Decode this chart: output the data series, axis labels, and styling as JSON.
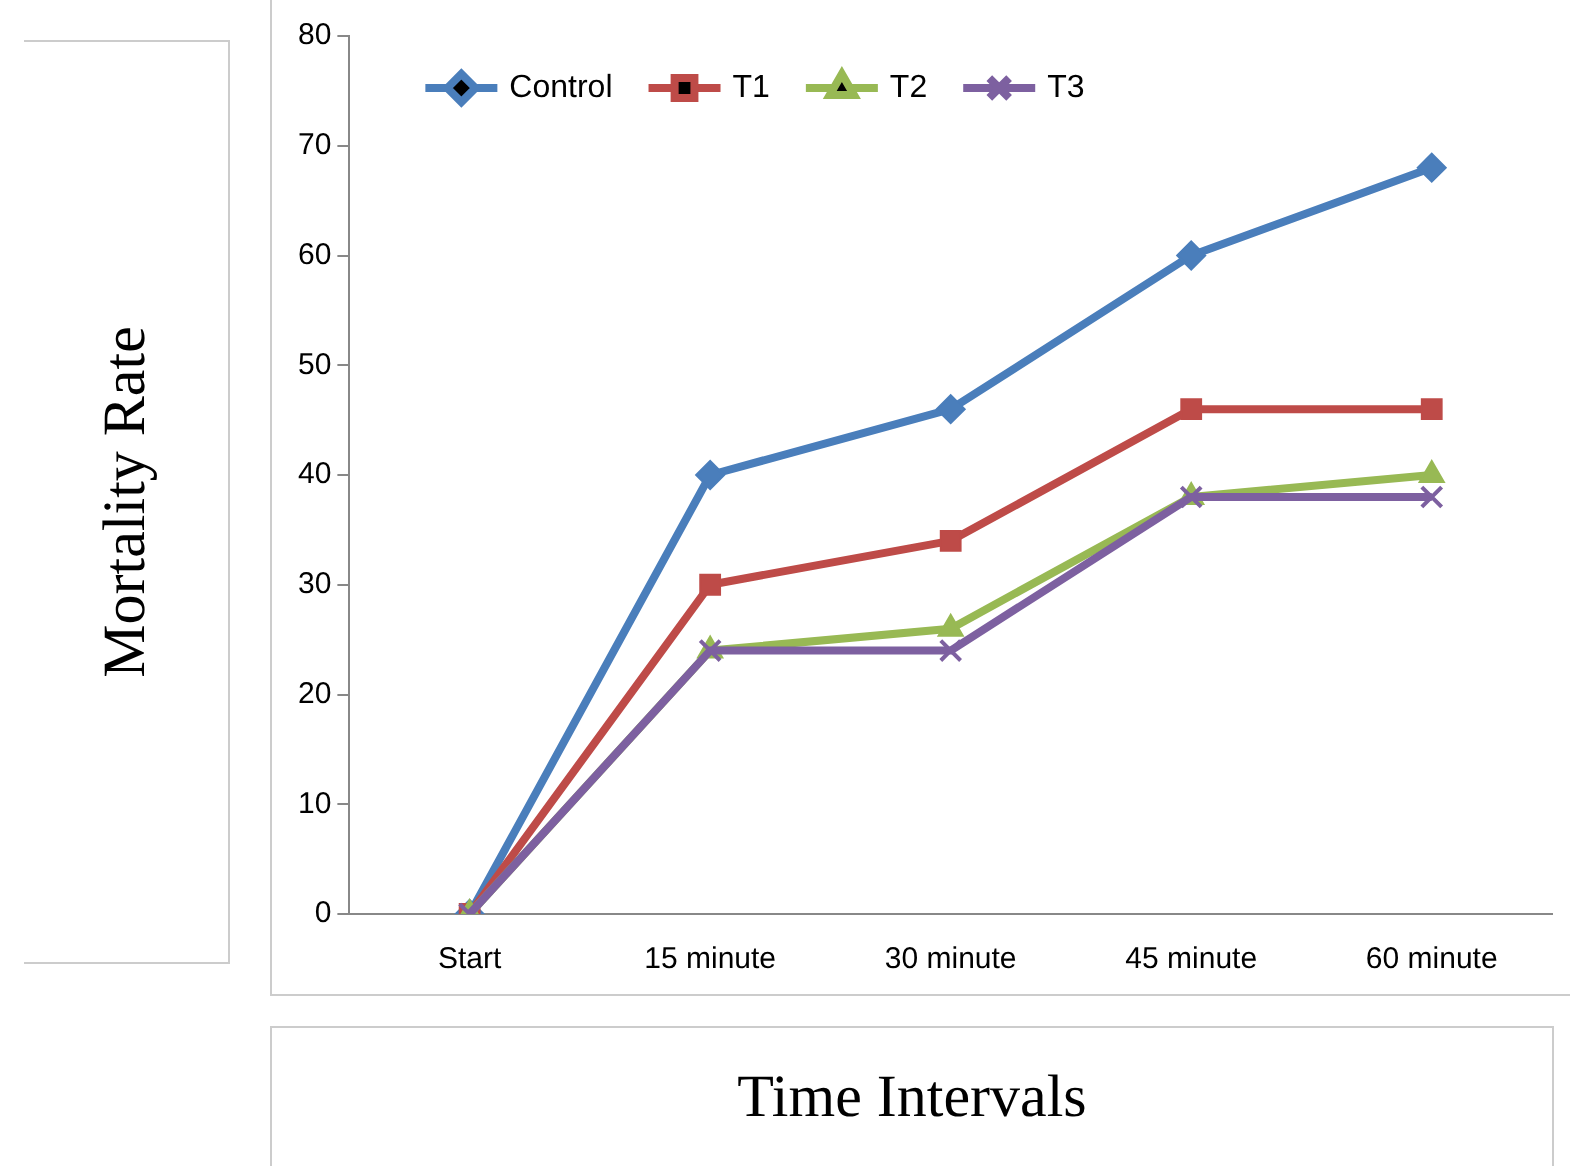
{
  "chart_data": {
    "type": "line",
    "xlabel": "Time Intervals",
    "ylabel": "Mortality Rate",
    "categories": [
      "Start",
      "15 minute",
      "30 minute",
      "45 minute",
      "60 minute"
    ],
    "series": [
      {
        "name": "Control",
        "color": "#4a7ebb",
        "marker": "diamond",
        "values": [
          0,
          40,
          46,
          60,
          68
        ]
      },
      {
        "name": "T1",
        "color": "#be4b48",
        "marker": "square",
        "values": [
          0,
          30,
          34,
          46,
          46
        ]
      },
      {
        "name": "T2",
        "color": "#98b954",
        "marker": "triangle",
        "values": [
          0,
          24,
          26,
          38,
          40
        ]
      },
      {
        "name": "T3",
        "color": "#7d60a0",
        "marker": "cross",
        "values": [
          0,
          24,
          24,
          38,
          38
        ]
      }
    ],
    "ylim": [
      0,
      80
    ],
    "yticks": [
      0,
      10,
      20,
      30,
      40,
      50,
      60,
      70,
      80
    ],
    "grid": false,
    "legend": "top",
    "line_style": "solid"
  }
}
